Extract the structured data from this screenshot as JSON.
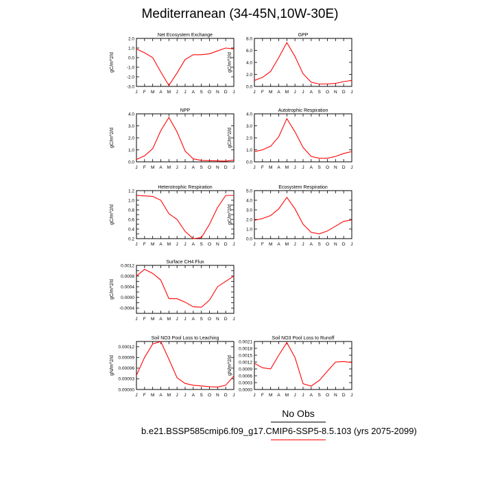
{
  "figure": {
    "title": "Mediterranean (34-45N,10W-30E)",
    "legend": {
      "obs_label": "No Obs",
      "case_label": "b.e21.BSSP585cmip6.f09_g17.CMIP6-SSP5-8.5.103 (yrs 2075-2099)",
      "case_color": "#ff0000"
    }
  },
  "chart_data": [
    {
      "type": "line",
      "title": "Net Ecosystem Exchange",
      "ylabel": "gC/m^2/d",
      "categories": [
        "J",
        "F",
        "M",
        "A",
        "M",
        "J",
        "J",
        "A",
        "S",
        "O",
        "N",
        "D",
        "J"
      ],
      "ylim": [
        -3.0,
        2.0
      ],
      "yticks": [
        -3.0,
        -2.0,
        -1.0,
        0.0,
        1.0,
        2.0
      ],
      "tick_labels": [
        "-3.0",
        "-2.0",
        "-1.0",
        "0.0",
        "1.0",
        "2.0"
      ],
      "series": [
        {
          "values": [
            0.9,
            0.5,
            0.0,
            -1.5,
            -2.9,
            -1.6,
            -0.2,
            0.3,
            0.3,
            0.4,
            0.7,
            1.0,
            0.9
          ],
          "color": "#ff0000"
        }
      ]
    },
    {
      "type": "line",
      "title": "GPP",
      "ylabel": "gC/m^2/d",
      "categories": [
        "J",
        "F",
        "M",
        "A",
        "M",
        "J",
        "J",
        "A",
        "S",
        "O",
        "N",
        "D",
        "J"
      ],
      "ylim": [
        0.0,
        8.0
      ],
      "yticks": [
        0,
        2,
        4,
        6,
        8
      ],
      "tick_labels": [
        "0.0",
        "2.0",
        "4.0",
        "6.0",
        "8.0"
      ],
      "series": [
        {
          "values": [
            1.0,
            1.5,
            2.5,
            4.8,
            7.3,
            5.0,
            2.1,
            0.7,
            0.4,
            0.4,
            0.5,
            0.8,
            1.0
          ],
          "color": "#ff0000"
        }
      ]
    },
    {
      "type": "line",
      "title": "NPP",
      "ylabel": "gC/m^2/d",
      "categories": [
        "J",
        "F",
        "M",
        "A",
        "M",
        "J",
        "J",
        "A",
        "S",
        "O",
        "N",
        "D",
        "J"
      ],
      "ylim": [
        0.0,
        4.0
      ],
      "yticks": [
        0,
        1,
        2,
        3,
        4
      ],
      "tick_labels": [
        "0.0",
        "1.0",
        "2.0",
        "3.0",
        "4.0"
      ],
      "series": [
        {
          "values": [
            0.2,
            0.5,
            1.1,
            2.6,
            3.7,
            2.5,
            0.9,
            0.25,
            0.12,
            0.1,
            0.08,
            0.05,
            0.15
          ],
          "color": "#ff0000"
        }
      ]
    },
    {
      "type": "line",
      "title": "Autotrophic Respiration",
      "ylabel": "gC/m^2/d",
      "categories": [
        "J",
        "F",
        "M",
        "A",
        "M",
        "J",
        "J",
        "A",
        "S",
        "O",
        "N",
        "D",
        "J"
      ],
      "ylim": [
        0.0,
        4.0
      ],
      "yticks": [
        0,
        1,
        2,
        3,
        4
      ],
      "tick_labels": [
        "0.0",
        "1.0",
        "2.0",
        "3.0",
        "4.0"
      ],
      "series": [
        {
          "values": [
            0.85,
            1.0,
            1.3,
            2.1,
            3.6,
            2.5,
            1.2,
            0.45,
            0.3,
            0.3,
            0.45,
            0.7,
            0.85
          ],
          "color": "#ff0000"
        }
      ]
    },
    {
      "type": "line",
      "title": "Heterotrophic Respiration",
      "ylabel": "gC/m^2/d",
      "categories": [
        "J",
        "F",
        "M",
        "A",
        "M",
        "J",
        "J",
        "A",
        "S",
        "O",
        "N",
        "D",
        "J"
      ],
      "ylim": [
        0.2,
        1.2
      ],
      "yticks": [
        0.2,
        0.3,
        0.4,
        0.5,
        0.6,
        0.7,
        0.8,
        0.9,
        1.0,
        1.1,
        1.2
      ],
      "tick_labels": [
        "0.2",
        "",
        "0.4",
        "",
        "0.6",
        "",
        "0.8",
        "",
        "1.0",
        "",
        "1.2"
      ],
      "series": [
        {
          "values": [
            1.1,
            1.09,
            1.08,
            1.0,
            0.72,
            0.6,
            0.35,
            0.2,
            0.22,
            0.5,
            0.85,
            1.1,
            1.1
          ],
          "color": "#ff0000"
        }
      ]
    },
    {
      "type": "line",
      "title": "Ecosystem Respiration",
      "ylabel": "gC/m^2/d",
      "categories": [
        "J",
        "F",
        "M",
        "A",
        "M",
        "J",
        "J",
        "A",
        "S",
        "O",
        "N",
        "D",
        "J"
      ],
      "ylim": [
        0.0,
        5.0
      ],
      "yticks": [
        0,
        1,
        2,
        3,
        4,
        5
      ],
      "tick_labels": [
        "0.0",
        "1.0",
        "2.0",
        "3.0",
        "4.0",
        "5.0"
      ],
      "series": [
        {
          "values": [
            1.9,
            2.1,
            2.4,
            3.1,
            4.3,
            3.1,
            1.5,
            0.65,
            0.5,
            0.8,
            1.3,
            1.8,
            1.95
          ],
          "color": "#ff0000"
        }
      ]
    },
    {
      "type": "line",
      "title": "Surface CH4 Flux",
      "ylabel": "gC/m^2/d",
      "categories": [
        "J",
        "F",
        "M",
        "A",
        "M",
        "J",
        "J",
        "A",
        "S",
        "O",
        "N",
        "D",
        "J"
      ],
      "ylim": [
        -0.0006,
        0.0012
      ],
      "yticks": [
        -0.0006,
        -0.0004,
        -0.0002,
        0.0,
        0.0002,
        0.0004,
        0.0006,
        0.0008,
        0.001,
        0.0012
      ],
      "tick_labels": [
        "",
        "-0.0004",
        "",
        "0.0000",
        "",
        "0.0004",
        "",
        "0.0008",
        "",
        "0.0012"
      ],
      "series": [
        {
          "values": [
            0.0008,
            0.00105,
            0.0009,
            0.00065,
            -5e-05,
            -5e-05,
            -0.00018,
            -0.00035,
            -0.00037,
            -0.0001,
            0.0004,
            0.0006,
            0.0008
          ],
          "color": "#ff0000"
        }
      ]
    },
    {
      "type": "line",
      "title": "Soil NO3 Pool Loss to Leaching",
      "ylabel": "gN/m^2/d",
      "categories": [
        "J",
        "F",
        "M",
        "A",
        "M",
        "J",
        "J",
        "A",
        "S",
        "O",
        "N",
        "D",
        "J"
      ],
      "ylim": [
        0.0,
        0.000135
      ],
      "yticks": [
        0,
        3e-05,
        6e-05,
        9e-05,
        0.00012
      ],
      "tick_labels": [
        "0.00000",
        "0.00003",
        "0.00006",
        "0.00009",
        "0.00012"
      ],
      "series": [
        {
          "values": [
            4e-05,
            9e-05,
            0.000128,
            0.000135,
            8.5e-05,
            3.3e-05,
            1.7e-05,
            1.2e-05,
            1e-05,
            8e-06,
            7e-06,
            1.2e-05,
            3.8e-05
          ],
          "color": "#ff0000"
        }
      ]
    },
    {
      "type": "line",
      "title": "Soil NO3 Pool Loss to Runoff",
      "ylabel": "gN/m^2/d",
      "categories": [
        "J",
        "F",
        "M",
        "A",
        "M",
        "J",
        "J",
        "A",
        "S",
        "O",
        "N",
        "D",
        "J"
      ],
      "ylim": [
        0.0,
        0.0021
      ],
      "yticks": [
        0,
        0.0003,
        0.0006,
        0.0009,
        0.0012,
        0.0015,
        0.0018,
        0.0021
      ],
      "tick_labels": [
        "0.0000",
        "0.0003",
        "0.0006",
        "0.0009",
        "0.0012",
        "0.0015",
        "0.0018",
        "0.0021"
      ],
      "series": [
        {
          "values": [
            0.00115,
            0.00095,
            0.0009,
            0.0015,
            0.00205,
            0.0014,
            0.00025,
            0.00015,
            0.0004,
            0.0008,
            0.0012,
            0.00122,
            0.00118
          ],
          "color": "#ff0000"
        }
      ]
    }
  ]
}
